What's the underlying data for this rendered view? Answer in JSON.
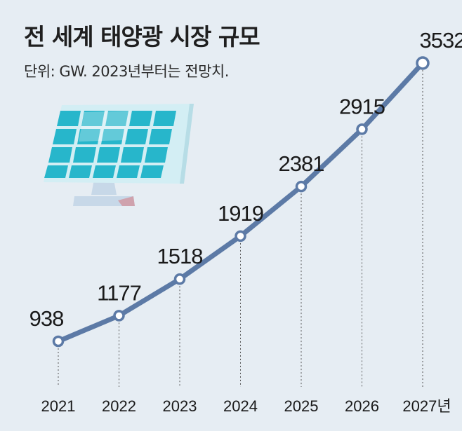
{
  "header": {
    "title": "전 세계 태양광 시장 규모",
    "subtitle": "단위: GW. 2023년부터는 전망치."
  },
  "chart_data": {
    "type": "line",
    "title": "전 세계 태양광 시장 규모",
    "subtitle": "단위: GW. 2023년부터는 전망치.",
    "categories": [
      "2021",
      "2022",
      "2023",
      "2024",
      "2025",
      "2026",
      "2027년"
    ],
    "values": [
      938,
      1177,
      1518,
      1919,
      2381,
      2915,
      3532
    ],
    "unit": "GW",
    "xlabel": "",
    "ylabel": "",
    "grid": false,
    "legend": "none"
  },
  "colors": {
    "background": "#e6edf3",
    "line": "#5c7aa6",
    "marker_fill": "#ffffff",
    "guide": "#555555",
    "panel_cell": "#27b6cb",
    "panel_frame": "#d3eef4",
    "stand": "#c7d8e8"
  },
  "icons": {
    "illustration": "solar-panel-icon"
  }
}
